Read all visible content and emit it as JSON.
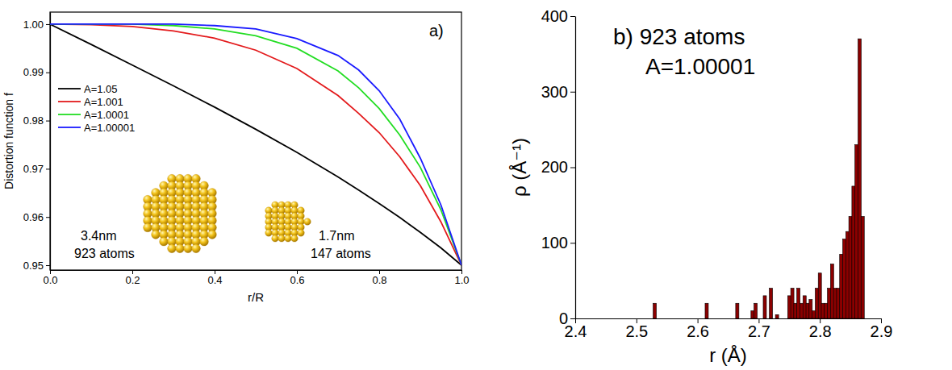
{
  "chart_data": [
    {
      "type": "line",
      "title": "a)",
      "x_label": "r/R",
      "y_label": "Distortion function f",
      "annotations": [
        "3.4nm",
        "923 atoms",
        "1.7nm",
        "147 atoms"
      ],
      "x": [
        0,
        0.1,
        0.2,
        0.3,
        0.4,
        0.5,
        0.6,
        0.7,
        0.75,
        0.8,
        0.85,
        0.9,
        0.95,
        1.0
      ],
      "series": [
        {
          "name": "A=1.05",
          "color": "#000000",
          "values": [
            1.0,
            0.9958,
            0.9915,
            0.9872,
            0.9828,
            0.9782,
            0.9734,
            0.9683,
            0.9656,
            0.9628,
            0.9599,
            0.9568,
            0.9536,
            0.95
          ]
        },
        {
          "name": "A=1.001",
          "color": "#e31a1c",
          "values": [
            1.0,
            0.9999,
            0.9995,
            0.9986,
            0.9971,
            0.9946,
            0.9908,
            0.9852,
            0.9815,
            0.9775,
            0.9725,
            0.9665,
            0.959,
            0.95
          ]
        },
        {
          "name": "A=1.0001",
          "color": "#22dd22",
          "values": [
            1.0,
            1.0,
            1.0,
            0.9997,
            0.999,
            0.9976,
            0.995,
            0.9903,
            0.9868,
            0.9825,
            0.977,
            0.9703,
            0.9615,
            0.95
          ]
        },
        {
          "name": "A=1.00001",
          "color": "#1a1aff",
          "values": [
            1.0,
            1.0,
            1.0,
            1.0,
            0.9997,
            0.999,
            0.997,
            0.9935,
            0.9905,
            0.9862,
            0.9803,
            0.9722,
            0.9625,
            0.95
          ]
        }
      ],
      "xlim": [
        0,
        1
      ],
      "xticks": [
        {
          "value": 0,
          "label": "0.0"
        },
        0.2,
        0.4,
        0.6,
        0.8,
        {
          "value": 1,
          "label": "1.0"
        }
      ],
      "ylim": [
        0.949,
        1.0025
      ],
      "yticks": [
        0.95,
        0.96,
        0.97,
        0.98,
        0.99,
        {
          "value": 1,
          "label": "1.00"
        }
      ],
      "legend": "left",
      "grid": false
    },
    {
      "type": "bar",
      "title": "b) 923 atoms",
      "subtitle": "A=1.00001",
      "x_label": "r (Å)",
      "y_label": "ρ (Å⁻¹)",
      "x": [
        2.53,
        2.615,
        2.665,
        2.69,
        2.695,
        2.71,
        2.72,
        2.73,
        2.75,
        2.755,
        2.76,
        2.765,
        2.77,
        2.775,
        2.78,
        2.785,
        2.79,
        2.795,
        2.8,
        2.805,
        2.81,
        2.815,
        2.82,
        2.825,
        2.83,
        2.835,
        2.84,
        2.845,
        2.85,
        2.855,
        2.86,
        2.865,
        2.87
      ],
      "values": [
        20,
        20,
        20,
        10,
        20,
        30,
        40,
        5,
        30,
        40,
        20,
        40,
        20,
        30,
        20,
        25,
        10,
        40,
        60,
        20,
        20,
        40,
        72,
        40,
        40,
        85,
        105,
        115,
        135,
        175,
        230,
        370,
        135
      ],
      "color": "#8b0000",
      "xlim": [
        2.4,
        2.9
      ],
      "xticks": [
        2.4,
        2.5,
        2.6,
        2.7,
        2.8,
        2.9
      ],
      "ylim": [
        0,
        400
      ],
      "yticks": [
        0,
        100,
        200,
        300,
        400
      ],
      "grid": false
    }
  ]
}
